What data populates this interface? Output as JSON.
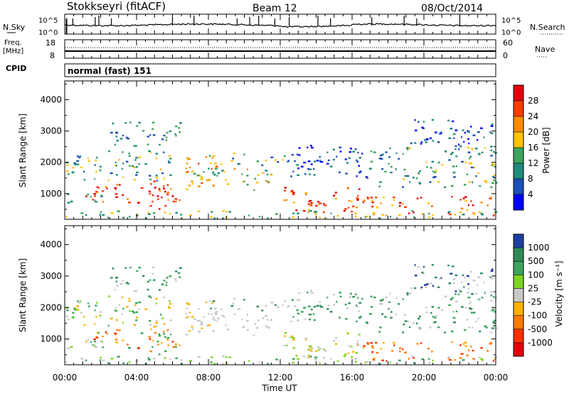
{
  "header": {
    "station": "Stokkseyri (fitACF)",
    "beam": "Beam 12",
    "date": "08/Oct/2014"
  },
  "noise_panel": {
    "left_label": "N.Sky",
    "right_label": "N.Search",
    "left_ticks": [
      "10^5",
      "10^0"
    ],
    "right_ticks": [
      "10^5",
      "10^0"
    ]
  },
  "freq_panel": {
    "left_label_1": "Freq.",
    "left_label_2": "[MHz]",
    "left_ticks": [
      "18",
      "8"
    ],
    "right_label": "Nave",
    "right_ticks": [
      "60",
      "0"
    ]
  },
  "cpid_panel": {
    "label": "CPID",
    "mode_text": "normal (fast) 151"
  },
  "chart_data": [
    {
      "type": "heatmap",
      "name": "power",
      "ylabel": "Slant Range [km]",
      "yticks": [
        "4000",
        "3000",
        "2000",
        "1000"
      ],
      "ylim": [
        180,
        4600
      ],
      "xlim": [
        0,
        24
      ],
      "colorbar_label": "Power [dB]",
      "colorbar_ticks": [
        "28",
        "24",
        "20",
        "16",
        "12",
        "8",
        "4"
      ],
      "colorbar_colors": [
        "#e8000b",
        "#ff3a00",
        "#ff8c00",
        "#ffc200",
        "#3aa55d",
        "#1f8a7a",
        "#1c4fb8",
        "#0000ff"
      ]
    },
    {
      "type": "heatmap",
      "name": "velocity",
      "ylabel": "Slant Range [km]",
      "yticks": [
        "4000",
        "3000",
        "2000",
        "1000"
      ],
      "ylim": [
        180,
        4600
      ],
      "xlim": [
        0,
        24
      ],
      "xticks": [
        "00:00",
        "04:00",
        "08:00",
        "12:00",
        "16:00",
        "20:00",
        "00:00"
      ],
      "xlabel": "Time UT",
      "colorbar_label": "Velocity [m s⁻¹]",
      "colorbar_ticks": [
        "1000",
        "500",
        "100",
        "25",
        "-25",
        "-100",
        "-500",
        "-1000"
      ],
      "colorbar_colors": [
        "#1c3fa0",
        "#2e8b57",
        "#3aa55d",
        "#7ed321",
        "#c8c8c8",
        "#ffb000",
        "#ff7a00",
        "#ff3000",
        "#e8000b"
      ]
    }
  ]
}
